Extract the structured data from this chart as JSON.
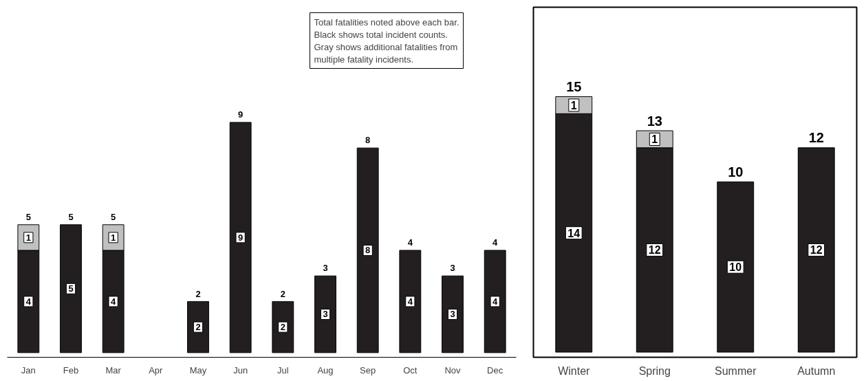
{
  "chart_data": [
    {
      "type": "bar",
      "stacked": true,
      "categories": [
        "Jan",
        "Feb",
        "Mar",
        "Apr",
        "May",
        "Jun",
        "Jul",
        "Aug",
        "Sep",
        "Oct",
        "Nov",
        "Dec"
      ],
      "series": [
        {
          "color": "#231f20",
          "values": [
            4,
            5,
            4,
            0,
            2,
            9,
            2,
            3,
            8,
            4,
            3,
            4
          ],
          "value_labels": [
            "4",
            "5",
            "4",
            null,
            "2",
            "9",
            "2",
            "3",
            "8",
            "4",
            "3",
            "4"
          ]
        },
        {
          "color": "#c0c0c0",
          "values": [
            1,
            0,
            1,
            0,
            0,
            0,
            0,
            0,
            0,
            0,
            0,
            0
          ],
          "value_labels": [
            "1",
            null,
            "1",
            null,
            null,
            null,
            null,
            null,
            null,
            null,
            null,
            null
          ]
        }
      ],
      "totals": [
        "5",
        "5",
        "5",
        null,
        "2",
        "9",
        "2",
        "3",
        "8",
        "4",
        "3",
        "4"
      ],
      "annotations": [
        "Total fatalities noted above each bar.\nBlack shows total incident counts.\nGray shows additional fatalities from\n     multiple fatality incidents."
      ]
    },
    {
      "type": "bar",
      "stacked": true,
      "categories": [
        "Winter",
        "Spring",
        "Summer",
        "Autumn"
      ],
      "series": [
        {
          "color": "#231f20",
          "values": [
            14,
            12,
            10,
            12
          ],
          "value_labels": [
            "14",
            "12",
            "10",
            "12"
          ]
        },
        {
          "color": "#c0c0c0",
          "values": [
            1,
            1,
            0,
            0
          ],
          "value_labels": [
            "1",
            "1",
            null,
            null
          ]
        }
      ],
      "totals": [
        "15",
        "13",
        "10",
        "12"
      ]
    }
  ]
}
